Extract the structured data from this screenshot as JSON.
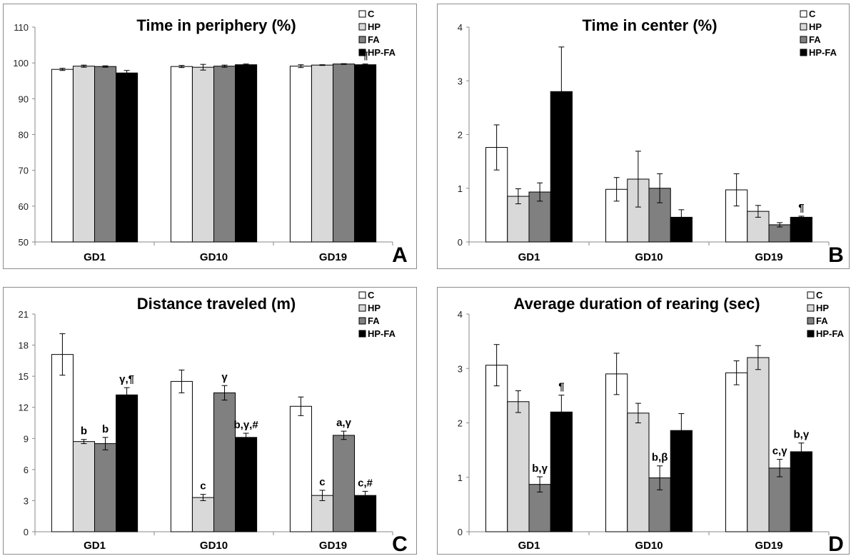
{
  "chart_data": [
    {
      "type": "bar",
      "panel_label": "A",
      "title": "Time in periphery (%)",
      "categories": [
        "GD1",
        "GD10",
        "GD19"
      ],
      "ylim": [
        50,
        110
      ],
      "yticks": [
        50,
        60,
        70,
        80,
        90,
        100,
        110
      ],
      "legend_position": "top-right",
      "series": [
        {
          "name": "C",
          "color": "#ffffff",
          "values": [
            98.2,
            99.0,
            99.1
          ],
          "errors": [
            0.3,
            0.3,
            0.4
          ]
        },
        {
          "name": "HP",
          "color": "#d9d9d9",
          "values": [
            99.1,
            98.8,
            99.4
          ],
          "errors": [
            0.3,
            0.8,
            0.1
          ]
        },
        {
          "name": "FA",
          "color": "#808080",
          "values": [
            99.0,
            99.1,
            99.7
          ],
          "errors": [
            0.2,
            0.3,
            0.1
          ]
        },
        {
          "name": "HP-FA",
          "color": "#000000",
          "values": [
            97.2,
            99.5,
            99.5
          ],
          "errors": [
            0.7,
            0.2,
            0.2
          ]
        }
      ],
      "annotations": [
        {
          "category": 2,
          "series": 3,
          "text": "¶"
        }
      ]
    },
    {
      "type": "bar",
      "panel_label": "B",
      "title": "Time in center (%)",
      "categories": [
        "GD1",
        "GD10",
        "GD19"
      ],
      "ylim": [
        0,
        4
      ],
      "yticks": [
        0,
        1,
        2,
        3,
        4
      ],
      "legend_position": "top-right",
      "series": [
        {
          "name": "C",
          "color": "#ffffff",
          "values": [
            1.76,
            0.98,
            0.97
          ],
          "errors": [
            0.42,
            0.22,
            0.3
          ]
        },
        {
          "name": "HP",
          "color": "#d9d9d9",
          "values": [
            0.85,
            1.17,
            0.57
          ],
          "errors": [
            0.14,
            0.52,
            0.11
          ]
        },
        {
          "name": "FA",
          "color": "#808080",
          "values": [
            0.93,
            1.0,
            0.32
          ],
          "errors": [
            0.17,
            0.27,
            0.04
          ]
        },
        {
          "name": "HP-FA",
          "color": "#000000",
          "values": [
            2.8,
            0.46,
            0.46
          ],
          "errors": [
            0.83,
            0.14,
            0.02
          ]
        }
      ],
      "annotations": [
        {
          "category": 2,
          "series": 3,
          "text": "¶"
        }
      ]
    },
    {
      "type": "bar",
      "panel_label": "C",
      "title": "Distance traveled (m)",
      "categories": [
        "GD1",
        "GD10",
        "GD19"
      ],
      "ylim": [
        0,
        21
      ],
      "yticks": [
        0,
        3,
        6,
        9,
        12,
        15,
        18,
        21
      ],
      "legend_position": "top-right",
      "series": [
        {
          "name": "C",
          "color": "#ffffff",
          "values": [
            17.1,
            14.5,
            12.1
          ],
          "errors": [
            2.0,
            1.1,
            0.9
          ]
        },
        {
          "name": "HP",
          "color": "#d9d9d9",
          "values": [
            8.7,
            3.3,
            3.5
          ],
          "errors": [
            0.2,
            0.3,
            0.5
          ]
        },
        {
          "name": "FA",
          "color": "#808080",
          "values": [
            8.5,
            13.4,
            9.3
          ],
          "errors": [
            0.6,
            0.7,
            0.4
          ]
        },
        {
          "name": "HP-FA",
          "color": "#000000",
          "values": [
            13.2,
            9.1,
            3.5
          ],
          "errors": [
            0.7,
            0.4,
            0.4
          ]
        }
      ],
      "annotations": [
        {
          "category": 0,
          "series": 1,
          "text": "b"
        },
        {
          "category": 0,
          "series": 2,
          "text": "b"
        },
        {
          "category": 0,
          "series": 3,
          "text": "γ,¶"
        },
        {
          "category": 1,
          "series": 1,
          "text": "c"
        },
        {
          "category": 1,
          "series": 2,
          "text": "γ"
        },
        {
          "category": 1,
          "series": 3,
          "text": "b,γ,#"
        },
        {
          "category": 2,
          "series": 1,
          "text": "c"
        },
        {
          "category": 2,
          "series": 2,
          "text": "a,γ"
        },
        {
          "category": 2,
          "series": 3,
          "text": "c,#"
        }
      ]
    },
    {
      "type": "bar",
      "panel_label": "D",
      "title": "Average duration of rearing (sec)",
      "categories": [
        "GD1",
        "GD10",
        "GD19"
      ],
      "ylim": [
        0,
        4
      ],
      "yticks": [
        0,
        1,
        2,
        3,
        4
      ],
      "legend_position": "top-right",
      "series": [
        {
          "name": "C",
          "color": "#ffffff",
          "values": [
            3.06,
            2.9,
            2.92
          ],
          "errors": [
            0.38,
            0.38,
            0.22
          ]
        },
        {
          "name": "HP",
          "color": "#d9d9d9",
          "values": [
            2.39,
            2.18,
            3.2
          ],
          "errors": [
            0.2,
            0.18,
            0.22
          ]
        },
        {
          "name": "FA",
          "color": "#808080",
          "values": [
            0.87,
            0.99,
            1.17
          ],
          "errors": [
            0.14,
            0.22,
            0.16
          ]
        },
        {
          "name": "HP-FA",
          "color": "#000000",
          "values": [
            2.2,
            1.86,
            1.47
          ],
          "errors": [
            0.31,
            0.31,
            0.16
          ]
        }
      ],
      "annotations": [
        {
          "category": 0,
          "series": 2,
          "text": "b,γ"
        },
        {
          "category": 0,
          "series": 3,
          "text": "¶"
        },
        {
          "category": 1,
          "series": 2,
          "text": "b,β"
        },
        {
          "category": 2,
          "series": 2,
          "text": "c,γ"
        },
        {
          "category": 2,
          "series": 3,
          "text": "b,γ"
        }
      ]
    }
  ]
}
